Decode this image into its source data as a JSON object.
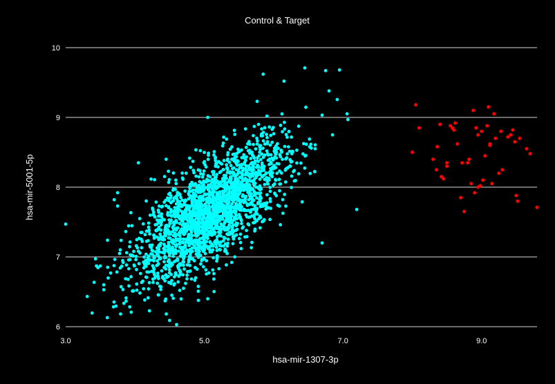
{
  "chart_data": {
    "type": "scatter",
    "title": "Control & Target",
    "xlabel": "hsa-mir-1307-3p",
    "ylabel": "hsa-mir-5001-5p",
    "xlim": [
      3.0,
      9.8
    ],
    "ylim": [
      6,
      10
    ],
    "x_ticks": [
      "3.0",
      "5.0",
      "7.0",
      "9.0"
    ],
    "x_tick_values": [
      3.0,
      5.0,
      7.0,
      9.0
    ],
    "y_ticks": [
      "6",
      "7",
      "8",
      "9",
      "10"
    ],
    "y_tick_values": [
      6,
      7,
      8,
      9,
      10
    ],
    "grid": "horizontal",
    "legend": "none",
    "series": [
      {
        "color": "#00ffff",
        "distribution": {
          "count": 2200,
          "x_mean": 5.1,
          "x_sd": 0.55,
          "y_mean": 7.65,
          "y_sd": 0.5,
          "correlation": 0.72
        },
        "x": [
          3.0,
          3.5,
          3.55,
          3.55,
          3.6,
          3.7,
          3.75,
          3.75,
          4.05,
          4.45,
          4.5,
          4.6,
          4.7,
          5.05,
          5.85,
          6.15,
          6.45,
          6.75,
          6.8,
          6.95,
          6.85,
          6.7,
          7.2,
          6.6,
          5.05,
          4.4,
          4.65
        ],
        "y": [
          7.47,
          6.87,
          6.6,
          6.53,
          6.13,
          7.82,
          7.92,
          7.73,
          8.35,
          8.4,
          6.09,
          6.03,
          6.55,
          6.4,
          9.62,
          9.52,
          9.71,
          9.67,
          9.38,
          9.68,
          8.75,
          7.2,
          7.68,
          8.55,
          9.0,
          6.7,
          6.8
        ]
      },
      {
        "color": "#ff0000",
        "x": [
          8.05,
          8.1,
          8.0,
          8.3,
          8.4,
          8.35,
          8.45,
          8.5,
          8.55,
          8.6,
          8.65,
          8.7,
          8.75,
          8.8,
          8.85,
          8.9,
          8.95,
          9.0,
          9.05,
          9.1,
          9.12,
          9.15,
          9.2,
          9.25,
          9.3,
          9.45,
          9.5,
          9.55,
          9.65,
          9.7,
          9.8,
          8.42,
          8.58,
          8.88,
          9.02,
          9.18,
          8.72,
          9.38,
          9.48,
          8.95,
          8.98,
          9.08,
          8.62,
          8.36,
          9.28,
          8.92,
          9.52,
          8.82,
          9.12,
          9.42,
          8.5
        ],
        "y": [
          9.18,
          8.85,
          8.5,
          8.4,
          8.9,
          8.25,
          8.12,
          8.35,
          8.88,
          8.82,
          8.62,
          7.85,
          7.65,
          8.35,
          8.05,
          7.92,
          8.0,
          8.8,
          8.45,
          9.15,
          8.6,
          8.05,
          8.7,
          8.2,
          8.25,
          8.82,
          7.88,
          8.7,
          8.55,
          8.48,
          7.71,
          8.15,
          8.85,
          9.1,
          8.1,
          9.05,
          8.35,
          8.72,
          8.65,
          8.75,
          8.02,
          8.88,
          8.92,
          8.58,
          8.8,
          8.85,
          7.8,
          8.4,
          8.62,
          8.75,
          8.3
        ]
      }
    ]
  }
}
